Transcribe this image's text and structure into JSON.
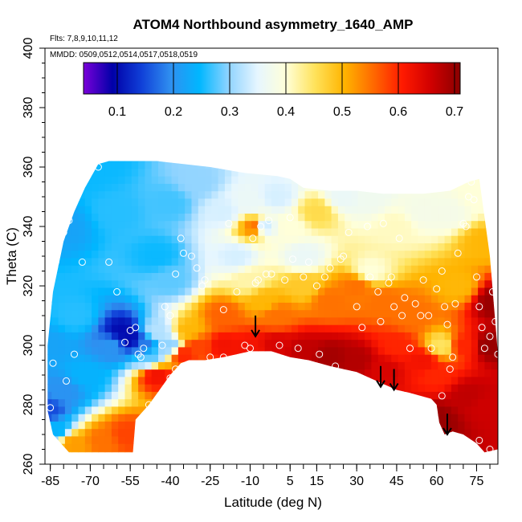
{
  "chart_data": {
    "type": "heatmap",
    "title": "ATOM4 Northbound asymmetry_1640_AMP",
    "flights_note": "Flts: 7,8,9,10,11,12",
    "dates_note": "MMDD: 0509,0512,0514,0517,0518,0519",
    "xlabel": "Latitude (deg N)",
    "ylabel": "Theta (C)",
    "xlim": [
      -87,
      83
    ],
    "ylim": [
      260,
      400
    ],
    "x_ticks": [
      -85,
      -70,
      -55,
      -40,
      -25,
      -10,
      5,
      15,
      30,
      45,
      60,
      75
    ],
    "y_ticks": [
      260,
      280,
      300,
      320,
      340,
      360,
      380,
      400
    ],
    "colorbar": {
      "range": [
        0.04,
        0.71
      ],
      "ticks": [
        0.1,
        0.2,
        0.3,
        0.4,
        0.5,
        0.6,
        0.7
      ],
      "colors": [
        "#7a00d9",
        "#0000a8",
        "#1040d8",
        "#2f8ff0",
        "#00b7ff",
        "#8fd3ff",
        "#e6f6ff",
        "#ffffd8",
        "#ffe25a",
        "#ffb400",
        "#ff6a00",
        "#ff1a00",
        "#d00000",
        "#8a0000"
      ]
    },
    "field_description": "asymmetry_1640_AMP vs latitude and potential temperature",
    "boundary": {
      "top": [
        [
          -86,
          300
        ],
        [
          -84,
          318
        ],
        [
          -80,
          335
        ],
        [
          -76,
          345
        ],
        [
          -72,
          353
        ],
        [
          -67,
          361
        ],
        [
          -63,
          362
        ],
        [
          -45,
          362
        ],
        [
          -35,
          361
        ],
        [
          -25,
          360
        ],
        [
          -12,
          358
        ],
        [
          0,
          357
        ],
        [
          5,
          356
        ],
        [
          10,
          353
        ],
        [
          20,
          352
        ],
        [
          30,
          352
        ],
        [
          40,
          351
        ],
        [
          55,
          351
        ],
        [
          65,
          352
        ],
        [
          72,
          355
        ],
        [
          76,
          356
        ],
        [
          78,
          343
        ],
        [
          80,
          330
        ],
        [
          83,
          297
        ]
      ],
      "bottom": [
        [
          83,
          265
        ],
        [
          78,
          264
        ],
        [
          75,
          267
        ],
        [
          70,
          270
        ],
        [
          66,
          271
        ],
        [
          63,
          270
        ],
        [
          61,
          274
        ],
        [
          60,
          280
        ],
        [
          58,
          282
        ],
        [
          50,
          284
        ],
        [
          45,
          285
        ],
        [
          40,
          287
        ],
        [
          30,
          291
        ],
        [
          20,
          293
        ],
        [
          12,
          295
        ],
        [
          5,
          296
        ],
        [
          -2,
          298
        ],
        [
          -10,
          298
        ],
        [
          -20,
          296
        ],
        [
          -27,
          295
        ],
        [
          -33,
          295
        ],
        [
          -36,
          294
        ],
        [
          -40,
          290
        ],
        [
          -44,
          285
        ],
        [
          -48,
          280
        ],
        [
          -52,
          276
        ],
        [
          -53,
          275
        ],
        [
          -54,
          264
        ],
        [
          -78,
          264
        ],
        [
          -80,
          266
        ],
        [
          -84,
          270
        ],
        [
          -86,
          278
        ]
      ]
    },
    "value_points": [
      [
        -86,
        278,
        0.15
      ],
      [
        -86,
        300,
        0.22
      ],
      [
        -80,
        340,
        0.22
      ],
      [
        -72,
        358,
        0.25
      ],
      [
        -65,
        361,
        0.25
      ],
      [
        -60,
        345,
        0.26
      ],
      [
        -75,
        310,
        0.26
      ],
      [
        -80,
        285,
        0.2
      ],
      [
        -72,
        290,
        0.24
      ],
      [
        -62,
        300,
        0.2
      ],
      [
        -58,
        305,
        0.1
      ],
      [
        -55,
        302,
        0.1
      ],
      [
        -50,
        300,
        0.18
      ],
      [
        -48,
        296,
        0.28
      ],
      [
        -45,
        305,
        0.32
      ],
      [
        -40,
        300,
        0.3
      ],
      [
        -45,
        330,
        0.25
      ],
      [
        -40,
        348,
        0.27
      ],
      [
        -30,
        355,
        0.3
      ],
      [
        -20,
        345,
        0.34
      ],
      [
        -15,
        330,
        0.34
      ],
      [
        -10,
        348,
        0.36
      ],
      [
        -5,
        340,
        0.33
      ],
      [
        0,
        350,
        0.34
      ],
      [
        5,
        340,
        0.4
      ],
      [
        10,
        330,
        0.36
      ],
      [
        15,
        345,
        0.46
      ],
      [
        25,
        350,
        0.36
      ],
      [
        35,
        350,
        0.37
      ],
      [
        45,
        340,
        0.41
      ],
      [
        55,
        345,
        0.38
      ],
      [
        65,
        345,
        0.38
      ],
      [
        75,
        350,
        0.4
      ],
      [
        78,
        335,
        0.5
      ],
      [
        -8,
        340,
        0.55
      ],
      [
        -40,
        322,
        0.28
      ],
      [
        -33,
        305,
        0.5
      ],
      [
        -30,
        300,
        0.58
      ],
      [
        -20,
        310,
        0.56
      ],
      [
        -10,
        322,
        0.42
      ],
      [
        -5,
        315,
        0.5
      ],
      [
        0,
        310,
        0.55
      ],
      [
        10,
        320,
        0.48
      ],
      [
        20,
        315,
        0.55
      ],
      [
        30,
        320,
        0.55
      ],
      [
        35,
        325,
        0.4
      ],
      [
        40,
        315,
        0.55
      ],
      [
        -20,
        300,
        0.62
      ],
      [
        -10,
        299,
        0.62
      ],
      [
        0,
        300,
        0.65
      ],
      [
        10,
        298,
        0.67
      ],
      [
        20,
        296,
        0.69
      ],
      [
        30,
        295,
        0.68
      ],
      [
        40,
        292,
        0.65
      ],
      [
        45,
        300,
        0.6
      ],
      [
        50,
        310,
        0.55
      ],
      [
        55,
        295,
        0.62
      ],
      [
        60,
        290,
        0.6
      ],
      [
        62,
        300,
        0.45
      ],
      [
        68,
        320,
        0.5
      ],
      [
        70,
        300,
        0.6
      ],
      [
        72,
        283,
        0.67
      ],
      [
        78,
        280,
        0.66
      ],
      [
        82,
        315,
        0.7
      ],
      [
        80,
        300,
        0.7
      ],
      [
        60,
        275,
        0.7
      ],
      [
        -56,
        270,
        0.58
      ],
      [
        -66,
        268,
        0.55
      ],
      [
        -76,
        267,
        0.52
      ],
      [
        -83,
        272,
        0.24
      ],
      [
        -35,
        297,
        0.6
      ],
      [
        -45,
        290,
        0.62
      ]
    ],
    "sample_points": [
      [
        -85,
        279
      ],
      [
        -84,
        294
      ],
      [
        -83,
        328
      ],
      [
        -82,
        333
      ],
      [
        -80,
        338
      ],
      [
        -78,
        342
      ],
      [
        -79,
        288
      ],
      [
        -76,
        297
      ],
      [
        -73,
        328
      ],
      [
        -67,
        360
      ],
      [
        -63,
        328
      ],
      [
        -60,
        318
      ],
      [
        -57,
        301
      ],
      [
        -55,
        305
      ],
      [
        -53,
        306
      ],
      [
        -52,
        297
      ],
      [
        -51,
        296
      ],
      [
        -50,
        299
      ],
      [
        -48,
        280
      ],
      [
        -45,
        276
      ],
      [
        -43,
        300
      ],
      [
        -42,
        313
      ],
      [
        -40,
        310
      ],
      [
        -40,
        289
      ],
      [
        -38,
        292
      ],
      [
        -38,
        324
      ],
      [
        -36,
        336
      ],
      [
        -35,
        331
      ],
      [
        -32,
        330
      ],
      [
        -30,
        326
      ],
      [
        -28,
        320
      ],
      [
        -27,
        322
      ],
      [
        -25,
        296
      ],
      [
        -20,
        296
      ],
      [
        -20,
        312
      ],
      [
        -18,
        341
      ],
      [
        -15,
        318
      ],
      [
        -12,
        300
      ],
      [
        -10,
        299
      ],
      [
        -8,
        321
      ],
      [
        -7,
        322
      ],
      [
        -6,
        340
      ],
      [
        -4,
        324
      ],
      [
        -2,
        324
      ],
      [
        1,
        300
      ],
      [
        3,
        322
      ],
      [
        5,
        343
      ],
      [
        6,
        329
      ],
      [
        8,
        299
      ],
      [
        10,
        323
      ],
      [
        12,
        328
      ],
      [
        16,
        297
      ],
      [
        18,
        323
      ],
      [
        20,
        326
      ],
      [
        22,
        293
      ],
      [
        24,
        329
      ],
      [
        27,
        338
      ],
      [
        30,
        313
      ],
      [
        32,
        306
      ],
      [
        34,
        340
      ],
      [
        35,
        323
      ],
      [
        38,
        318
      ],
      [
        39,
        308
      ],
      [
        42,
        321
      ],
      [
        43,
        323
      ],
      [
        44,
        313
      ],
      [
        46,
        336
      ],
      [
        47,
        310
      ],
      [
        48,
        316
      ],
      [
        50,
        299
      ],
      [
        52,
        314
      ],
      [
        54,
        310
      ],
      [
        55,
        322
      ],
      [
        57,
        310
      ],
      [
        58,
        299
      ],
      [
        60,
        319
      ],
      [
        62,
        325
      ],
      [
        63,
        313
      ],
      [
        64,
        307
      ],
      [
        66,
        296
      ],
      [
        67,
        314
      ],
      [
        68,
        331
      ],
      [
        70,
        341
      ],
      [
        71,
        340
      ],
      [
        72,
        350
      ],
      [
        73,
        355
      ],
      [
        74,
        349
      ],
      [
        75,
        323
      ],
      [
        76,
        313
      ],
      [
        77,
        306
      ],
      [
        78,
        299
      ],
      [
        80,
        303
      ],
      [
        81,
        318
      ],
      [
        82,
        308
      ],
      [
        83,
        297
      ],
      [
        76,
        268
      ],
      [
        80,
        265
      ],
      [
        65,
        292
      ],
      [
        62,
        283
      ],
      [
        15,
        320
      ],
      [
        -3,
        342
      ],
      [
        -9,
        336
      ],
      [
        25,
        330
      ],
      [
        40,
        341
      ]
    ],
    "flight_arrows": [
      [
        -8,
        303
      ],
      [
        39,
        286
      ],
      [
        44,
        285
      ],
      [
        64,
        270
      ]
    ]
  }
}
